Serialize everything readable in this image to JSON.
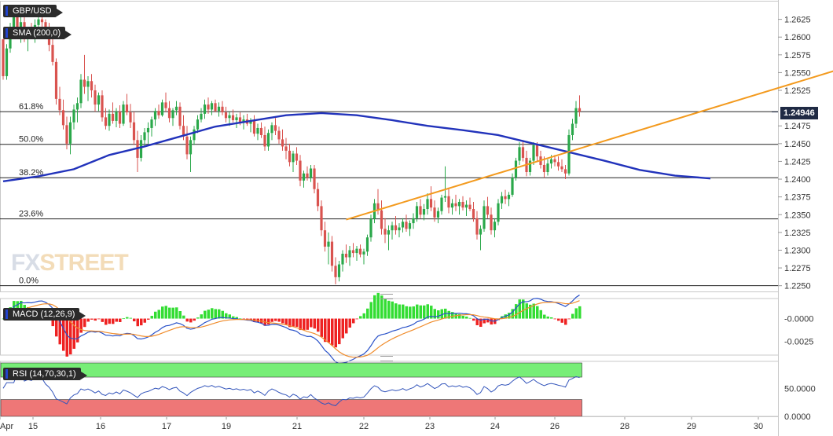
{
  "chart_data": {
    "type": "candlestick",
    "symbol": "GBP/USD",
    "overlays": [
      "SMA (200,0)"
    ],
    "price_axis": {
      "ticks": [
        "1.2625",
        "1.2600",
        "1.2575",
        "1.2550",
        "1.2525",
        "1.2475",
        "1.2450",
        "1.2425",
        "1.2400",
        "1.2375",
        "1.2350",
        "1.2325",
        "1.2300",
        "1.2275",
        "1.2250"
      ],
      "range": [
        1.2243,
        1.265
      ]
    },
    "current_price": "1.24946",
    "fibonacci": [
      {
        "label": "61.8%",
        "price": 1.2495
      },
      {
        "label": "50.0%",
        "price": 1.2449
      },
      {
        "label": "38.2%",
        "price": 1.2402
      },
      {
        "label": "23.6%",
        "price": 1.2344
      },
      {
        "label": "0.0%",
        "price": 1.225
      }
    ],
    "x_axis_labels": [
      "Apr",
      "15",
      "16",
      "17",
      "19",
      "21",
      "22",
      "23",
      "24",
      "26",
      "28",
      "29",
      "30"
    ],
    "trendline": {
      "from": {
        "bar": 97,
        "price": 1.2343
      },
      "to": {
        "bar": 240,
        "price": 1.256
      },
      "color": "#f39a1e"
    },
    "sma_200": [
      {
        "bar": 0,
        "price": 1.2397
      },
      {
        "bar": 10,
        "price": 1.2404
      },
      {
        "bar": 20,
        "price": 1.2414
      },
      {
        "bar": 30,
        "price": 1.2434
      },
      {
        "bar": 40,
        "price": 1.2446
      },
      {
        "bar": 50,
        "price": 1.246
      },
      {
        "bar": 60,
        "price": 1.2474
      },
      {
        "bar": 70,
        "price": 1.2482
      },
      {
        "bar": 80,
        "price": 1.249
      },
      {
        "bar": 90,
        "price": 1.2493
      },
      {
        "bar": 100,
        "price": 1.249
      },
      {
        "bar": 110,
        "price": 1.2483
      },
      {
        "bar": 120,
        "price": 1.2475
      },
      {
        "bar": 130,
        "price": 1.2469
      },
      {
        "bar": 140,
        "price": 1.2462
      },
      {
        "bar": 150,
        "price": 1.245
      },
      {
        "bar": 160,
        "price": 1.2438
      },
      {
        "bar": 170,
        "price": 1.2426
      },
      {
        "bar": 180,
        "price": 1.2413
      },
      {
        "bar": 190,
        "price": 1.2405
      },
      {
        "bar": 200,
        "price": 1.2401
      }
    ],
    "candles_ohlc": [
      [
        1.2597,
        1.2597,
        1.254,
        1.2545
      ],
      [
        1.2545,
        1.259,
        1.254,
        1.2584
      ],
      [
        1.2584,
        1.262,
        1.2578,
        1.2612
      ],
      [
        1.2612,
        1.2643,
        1.2605,
        1.2634
      ],
      [
        1.2634,
        1.264,
        1.2603,
        1.261
      ],
      [
        1.261,
        1.2628,
        1.2592,
        1.2621
      ],
      [
        1.2621,
        1.2628,
        1.2593,
        1.2597
      ],
      [
        1.2597,
        1.2612,
        1.258,
        1.2606
      ],
      [
        1.2606,
        1.262,
        1.2597,
        1.2603
      ],
      [
        1.2603,
        1.2625,
        1.2592,
        1.2617
      ],
      [
        1.2617,
        1.2634,
        1.2598,
        1.2625
      ],
      [
        1.2625,
        1.2632,
        1.261,
        1.2621
      ],
      [
        1.2621,
        1.2625,
        1.2598,
        1.2602
      ],
      [
        1.2602,
        1.262,
        1.258,
        1.2589
      ],
      [
        1.2589,
        1.2598,
        1.256,
        1.2565
      ],
      [
        1.2565,
        1.257,
        1.2505,
        1.2513
      ],
      [
        1.2513,
        1.253,
        1.249,
        1.2497
      ],
      [
        1.2497,
        1.2512,
        1.247,
        1.2476
      ],
      [
        1.2476,
        1.2488,
        1.2442,
        1.245
      ],
      [
        1.245,
        1.2488,
        1.2435,
        1.248
      ],
      [
        1.248,
        1.2505,
        1.247,
        1.2498
      ],
      [
        1.2498,
        1.2515,
        1.248,
        1.2507
      ],
      [
        1.2507,
        1.2548,
        1.25,
        1.254
      ],
      [
        1.254,
        1.2575,
        1.252,
        1.253
      ],
      [
        1.253,
        1.2545,
        1.251,
        1.2538
      ],
      [
        1.2538,
        1.2548,
        1.2515,
        1.2525
      ],
      [
        1.2525,
        1.2533,
        1.2495,
        1.2505
      ],
      [
        1.2505,
        1.2522,
        1.2496,
        1.2518
      ],
      [
        1.2518,
        1.2525,
        1.2481,
        1.2487
      ],
      [
        1.2487,
        1.25,
        1.247,
        1.2475
      ],
      [
        1.2475,
        1.2498,
        1.2468,
        1.2492
      ],
      [
        1.2492,
        1.2508,
        1.2478,
        1.2482
      ],
      [
        1.2482,
        1.25,
        1.2473,
        1.2495
      ],
      [
        1.2495,
        1.2504,
        1.2472,
        1.2478
      ],
      [
        1.2478,
        1.251,
        1.2475,
        1.2505
      ],
      [
        1.2505,
        1.252,
        1.249,
        1.2494
      ],
      [
        1.2494,
        1.2506,
        1.2472,
        1.248
      ],
      [
        1.248,
        1.2495,
        1.2448,
        1.2455
      ],
      [
        1.2455,
        1.2468,
        1.241,
        1.243
      ],
      [
        1.243,
        1.2462,
        1.2425,
        1.2455
      ],
      [
        1.2455,
        1.2472,
        1.2447,
        1.2466
      ],
      [
        1.2466,
        1.248,
        1.245,
        1.2472
      ],
      [
        1.2472,
        1.2488,
        1.246,
        1.2484
      ],
      [
        1.2484,
        1.25,
        1.2475,
        1.2496
      ],
      [
        1.2496,
        1.2505,
        1.2485,
        1.249
      ],
      [
        1.249,
        1.2512,
        1.2488,
        1.2508
      ],
      [
        1.2508,
        1.2522,
        1.2495,
        1.25
      ],
      [
        1.25,
        1.251,
        1.248,
        1.2486
      ],
      [
        1.2486,
        1.25,
        1.2475,
        1.2497
      ],
      [
        1.2497,
        1.251,
        1.249,
        1.2502
      ],
      [
        1.2502,
        1.2508,
        1.247,
        1.2475
      ],
      [
        1.2475,
        1.249,
        1.2455,
        1.246
      ],
      [
        1.246,
        1.2475,
        1.2428,
        1.2435
      ],
      [
        1.2435,
        1.246,
        1.241,
        1.2455
      ],
      [
        1.2455,
        1.2475,
        1.2448,
        1.247
      ],
      [
        1.247,
        1.249,
        1.2465,
        1.2484
      ],
      [
        1.2484,
        1.25,
        1.248,
        1.2492
      ],
      [
        1.2492,
        1.2512,
        1.2485,
        1.2505
      ],
      [
        1.2505,
        1.2515,
        1.2492,
        1.2498
      ],
      [
        1.2498,
        1.251,
        1.249,
        1.2507
      ],
      [
        1.2507,
        1.2512,
        1.2494,
        1.2496
      ],
      [
        1.2496,
        1.2508,
        1.2488,
        1.2502
      ],
      [
        1.2502,
        1.251,
        1.249,
        1.2494
      ],
      [
        1.2494,
        1.2502,
        1.248,
        1.2486
      ],
      [
        1.2486,
        1.2495,
        1.2475,
        1.249
      ],
      [
        1.249,
        1.2498,
        1.248,
        1.2483
      ],
      [
        1.2483,
        1.2492,
        1.2472,
        1.2487
      ],
      [
        1.2487,
        1.2494,
        1.2476,
        1.248
      ],
      [
        1.248,
        1.249,
        1.247,
        1.2484
      ],
      [
        1.2484,
        1.2492,
        1.2475,
        1.2478
      ],
      [
        1.2478,
        1.2486,
        1.2466,
        1.2482
      ],
      [
        1.2482,
        1.249,
        1.246,
        1.2464
      ],
      [
        1.2464,
        1.2478,
        1.2455,
        1.2472
      ],
      [
        1.2472,
        1.248,
        1.2458,
        1.2462
      ],
      [
        1.2462,
        1.2474,
        1.244,
        1.2446
      ],
      [
        1.2446,
        1.247,
        1.244,
        1.2465
      ],
      [
        1.2465,
        1.248,
        1.2455,
        1.2476
      ],
      [
        1.2476,
        1.2486,
        1.2462,
        1.2468
      ],
      [
        1.2468,
        1.2474,
        1.245,
        1.2456
      ],
      [
        1.2456,
        1.247,
        1.244,
        1.2446
      ],
      [
        1.2446,
        1.2458,
        1.2428,
        1.244
      ],
      [
        1.244,
        1.245,
        1.2418,
        1.2424
      ],
      [
        1.2424,
        1.244,
        1.241,
        1.2436
      ],
      [
        1.2436,
        1.2445,
        1.242,
        1.2426
      ],
      [
        1.2426,
        1.2434,
        1.239,
        1.2398
      ],
      [
        1.2398,
        1.2412,
        1.2388,
        1.2408
      ],
      [
        1.2408,
        1.2418,
        1.2398,
        1.2402
      ],
      [
        1.2402,
        1.242,
        1.2396,
        1.2415
      ],
      [
        1.2415,
        1.242,
        1.238,
        1.2386
      ],
      [
        1.2386,
        1.2395,
        1.2355,
        1.2362
      ],
      [
        1.2362,
        1.237,
        1.232,
        1.2328
      ],
      [
        1.2328,
        1.234,
        1.2298,
        1.2305
      ],
      [
        1.2305,
        1.2325,
        1.228,
        1.2312
      ],
      [
        1.2312,
        1.232,
        1.227,
        1.2278
      ],
      [
        1.2278,
        1.229,
        1.2252,
        1.2262
      ],
      [
        1.2262,
        1.2285,
        1.2256,
        1.228
      ],
      [
        1.228,
        1.23,
        1.227,
        1.2295
      ],
      [
        1.2295,
        1.2308,
        1.2282,
        1.229
      ],
      [
        1.229,
        1.2306,
        1.2278,
        1.23
      ],
      [
        1.23,
        1.231,
        1.229,
        1.2296
      ],
      [
        1.2296,
        1.2306,
        1.2285,
        1.2302
      ],
      [
        1.2302,
        1.2308,
        1.229,
        1.2294
      ],
      [
        1.2294,
        1.2302,
        1.228,
        1.2298
      ],
      [
        1.2298,
        1.2322,
        1.2292,
        1.2318
      ],
      [
        1.2318,
        1.235,
        1.2312,
        1.2344
      ],
      [
        1.2344,
        1.2372,
        1.2338,
        1.2366
      ],
      [
        1.2366,
        1.2386,
        1.235,
        1.2356
      ],
      [
        1.2356,
        1.237,
        1.2322,
        1.233
      ],
      [
        1.233,
        1.2345,
        1.231,
        1.2322
      ],
      [
        1.2322,
        1.2335,
        1.23,
        1.2328
      ],
      [
        1.2328,
        1.234,
        1.2315,
        1.2335
      ],
      [
        1.2335,
        1.2348,
        1.2322,
        1.2328
      ],
      [
        1.2328,
        1.2338,
        1.2318,
        1.2332
      ],
      [
        1.2332,
        1.2345,
        1.2325,
        1.234
      ],
      [
        1.234,
        1.235,
        1.2326,
        1.233
      ],
      [
        1.233,
        1.2342,
        1.232,
        1.2338
      ],
      [
        1.2338,
        1.2352,
        1.233,
        1.2345
      ],
      [
        1.2345,
        1.2368,
        1.234,
        1.2362
      ],
      [
        1.2362,
        1.2372,
        1.2345,
        1.235
      ],
      [
        1.235,
        1.2365,
        1.2342,
        1.2358
      ],
      [
        1.2358,
        1.238,
        1.235,
        1.2372
      ],
      [
        1.2372,
        1.239,
        1.2355,
        1.236
      ],
      [
        1.236,
        1.237,
        1.234,
        1.2346
      ],
      [
        1.2346,
        1.236,
        1.2338,
        1.2355
      ],
      [
        1.2355,
        1.2378,
        1.235,
        1.2374
      ],
      [
        1.2374,
        1.2418,
        1.2368,
        1.2376
      ],
      [
        1.2376,
        1.2388,
        1.2352,
        1.236
      ],
      [
        1.236,
        1.2372,
        1.235,
        1.2366
      ],
      [
        1.2366,
        1.2378,
        1.2355,
        1.2362
      ],
      [
        1.2362,
        1.2372,
        1.235,
        1.2368
      ],
      [
        1.2368,
        1.2376,
        1.2356,
        1.236
      ],
      [
        1.236,
        1.237,
        1.2348,
        1.2364
      ],
      [
        1.2364,
        1.2374,
        1.2355,
        1.2358
      ],
      [
        1.2358,
        1.2368,
        1.234,
        1.2345
      ],
      [
        1.2345,
        1.2355,
        1.2315,
        1.2322
      ],
      [
        1.2322,
        1.2335,
        1.23,
        1.233
      ],
      [
        1.233,
        1.237,
        1.2326,
        1.2362
      ],
      [
        1.2362,
        1.2375,
        1.2345,
        1.235
      ],
      [
        1.235,
        1.236,
        1.2322,
        1.2328
      ],
      [
        1.2328,
        1.2345,
        1.2318,
        1.234
      ],
      [
        1.234,
        1.2372,
        1.2335,
        1.2366
      ],
      [
        1.2366,
        1.2382,
        1.2358,
        1.2376
      ],
      [
        1.2376,
        1.2385,
        1.2365,
        1.2372
      ],
      [
        1.2372,
        1.2382,
        1.2362,
        1.2378
      ],
      [
        1.2378,
        1.2408,
        1.2375,
        1.2402
      ],
      [
        1.2402,
        1.243,
        1.2398,
        1.2426
      ],
      [
        1.2426,
        1.2452,
        1.242,
        1.2445
      ],
      [
        1.2445,
        1.2455,
        1.2425,
        1.243
      ],
      [
        1.243,
        1.244,
        1.2404,
        1.241
      ],
      [
        1.241,
        1.243,
        1.2405,
        1.2426
      ],
      [
        1.2426,
        1.2452,
        1.242,
        1.2448
      ],
      [
        1.2448,
        1.2452,
        1.2425,
        1.2432
      ],
      [
        1.2432,
        1.244,
        1.2415,
        1.242
      ],
      [
        1.242,
        1.2432,
        1.2402,
        1.241
      ],
      [
        1.241,
        1.2428,
        1.2405,
        1.2422
      ],
      [
        1.2422,
        1.2434,
        1.2415,
        1.2428
      ],
      [
        1.2428,
        1.2434,
        1.2418,
        1.2424
      ],
      [
        1.2424,
        1.2432,
        1.2412,
        1.2418
      ],
      [
        1.2418,
        1.2428,
        1.241,
        1.2414
      ],
      [
        1.2414,
        1.242,
        1.24,
        1.2408
      ],
      [
        1.2408,
        1.247,
        1.2405,
        1.2462
      ],
      [
        1.2462,
        1.2485,
        1.2455,
        1.2478
      ],
      [
        1.2478,
        1.251,
        1.2472,
        1.25
      ],
      [
        1.25,
        1.2518,
        1.2488,
        1.2495
      ]
    ]
  },
  "labels": {
    "symbol_tag": "GBP/USD",
    "sma_tag": "SMA (200,0)",
    "macd_tag": "MACD (12,26,9)",
    "rsi_tag": "RSI (14,70,30,1)",
    "price_tag": "1.24946",
    "logo_fx": "FX",
    "logo_street": "STREET"
  },
  "macd_panel": {
    "ticks": [
      "-0.0000",
      "-0.0025"
    ],
    "range": [
      -0.004,
      0.0022
    ]
  },
  "rsi_panel": {
    "ticks": [
      "50.0000",
      "0.0000"
    ],
    "overbought": 70,
    "oversold": 30,
    "colors": {
      "overbought": "#77ee77",
      "oversold": "#ee7777",
      "line": "#3355bb"
    }
  },
  "colors": {
    "bull": "#2aa84a",
    "bear": "#d9534f",
    "sma": "#2233bb",
    "trendline": "#f39a1e",
    "macd": "#2a52c9",
    "signal": "#f08c2c",
    "hist_pos": "#33dd33",
    "hist_neg": "#ee2222"
  }
}
